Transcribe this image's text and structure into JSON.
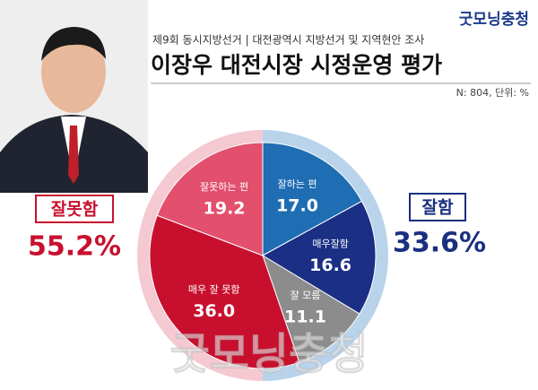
{
  "brand": "굿모닝충청",
  "subtitle": "제9회 동시지방선거 | 대전광역시 지방선거 및 지역현안 조사",
  "note": "N: 804, 단위: %",
  "summary": [
    {
      "name": "잘못함",
      "value": 55.2,
      "value_label": "55.2%",
      "color": "#c8102e"
    },
    {
      "name": "잘함",
      "value": 33.6,
      "value_label": "33.6%",
      "color": "#1a2f80"
    }
  ],
  "chart_data": {
    "type": "pie",
    "title": "이장우 대전시장 시정운영 평가",
    "categories": [
      "잘하는 편",
      "매우잘함",
      "잘 모름",
      "매우 잘 못함",
      "잘못하는 편"
    ],
    "values": [
      17.0,
      16.6,
      11.1,
      36.0,
      19.2
    ],
    "value_labels": [
      "17.0",
      "16.6",
      "11.1",
      "36.0",
      "19.2"
    ],
    "colors": [
      "#1f6db3",
      "#1b2f85",
      "#8c8c8c",
      "#c8102e",
      "#e2506d"
    ]
  }
}
